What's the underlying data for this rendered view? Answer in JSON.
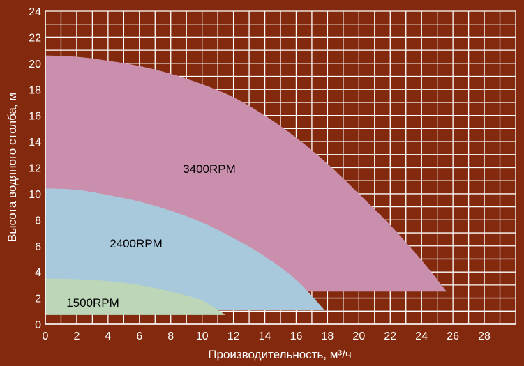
{
  "colors": {
    "background": "#832a0e",
    "grid": "#ffffff",
    "text": "#ffffff",
    "label_text": "#000000"
  },
  "chart_data": {
    "type": "area",
    "title": "",
    "xlabel": "Производительность, м³/ч",
    "ylabel": "Высота водяного столба, м",
    "xlim": [
      0,
      30
    ],
    "ylim": [
      0,
      24
    ],
    "x_ticks": [
      "0",
      "2",
      "4",
      "6",
      "8",
      "10",
      "12",
      "14",
      "16",
      "18",
      "20",
      "22",
      "24",
      "26",
      "28"
    ],
    "y_ticks": [
      "0",
      "2",
      "4",
      "6",
      "8",
      "10",
      "12",
      "14",
      "16",
      "18",
      "20",
      "22",
      "24"
    ],
    "grid": true,
    "series": [
      {
        "name": "3400RPM",
        "color": "#cb8fae",
        "min_head": 2.5,
        "curve": [
          [
            0,
            20.6
          ],
          [
            2,
            20.5
          ],
          [
            4,
            20.2
          ],
          [
            6,
            19.8
          ],
          [
            8,
            19.2
          ],
          [
            10,
            18.4
          ],
          [
            12,
            17.4
          ],
          [
            14,
            16.0
          ],
          [
            16,
            14.3
          ],
          [
            18,
            12.3
          ],
          [
            20,
            10.0
          ],
          [
            22,
            7.6
          ],
          [
            24,
            4.9
          ],
          [
            25.6,
            2.5
          ]
        ]
      },
      {
        "name": "2400RPM",
        "color": "#a8c9dc",
        "min_head": 1.1,
        "curve": [
          [
            0,
            10.4
          ],
          [
            2,
            10.3
          ],
          [
            4,
            9.9
          ],
          [
            6,
            9.4
          ],
          [
            8,
            8.7
          ],
          [
            10,
            7.8
          ],
          [
            12,
            6.6
          ],
          [
            14,
            5.2
          ],
          [
            16,
            3.4
          ],
          [
            17.8,
            1.1
          ]
        ]
      },
      {
        "name": "1500RPM",
        "color": "#bcd6b7",
        "min_head": 0.7,
        "curve": [
          [
            0,
            3.5
          ],
          [
            2,
            3.45
          ],
          [
            4,
            3.3
          ],
          [
            6,
            3.0
          ],
          [
            8,
            2.5
          ],
          [
            10,
            1.8
          ],
          [
            11.5,
            0.7
          ]
        ]
      }
    ]
  }
}
